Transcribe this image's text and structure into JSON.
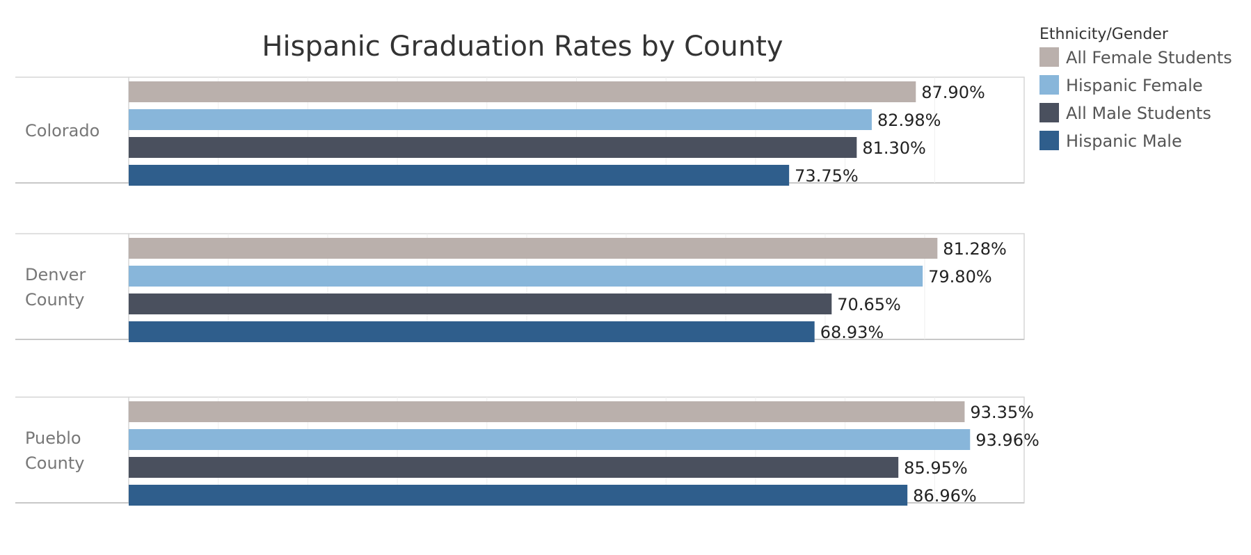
{
  "chart_data": {
    "type": "bar",
    "orientation": "horizontal",
    "title": "Hispanic Graduation Rates by County",
    "legend": {
      "title": "Ethnicity/Gender",
      "placement": "right"
    },
    "series": [
      {
        "name": "All Female Students",
        "color": "#BAB0AC"
      },
      {
        "name": "Hispanic Female",
        "color": "#88B6DA"
      },
      {
        "name": "All Male Students",
        "color": "#4A505E"
      },
      {
        "name": "Hispanic Male",
        "color": "#2F5E8C"
      }
    ],
    "panels": [
      {
        "label_lines": [
          "Colorado"
        ],
        "values": [
          87.9,
          82.98,
          81.3,
          73.75
        ],
        "value_labels": [
          "87.90%",
          "82.98%",
          "81.30%",
          "73.75%"
        ],
        "xlim": [
          0,
          100
        ]
      },
      {
        "label_lines": [
          "Denver",
          "County"
        ],
        "values": [
          81.28,
          79.8,
          70.65,
          68.93
        ],
        "value_labels": [
          "81.28%",
          "79.80%",
          "70.65%",
          "68.93%"
        ],
        "xlim": [
          0,
          90
        ]
      },
      {
        "label_lines": [
          "Pueblo",
          "County"
        ],
        "values": [
          93.35,
          93.96,
          85.95,
          86.96
        ],
        "value_labels": [
          "93.35%",
          "93.96%",
          "85.95%",
          "86.96%"
        ],
        "xlim": [
          0,
          100
        ]
      }
    ],
    "grid": true,
    "axis_labels_visible": false
  }
}
